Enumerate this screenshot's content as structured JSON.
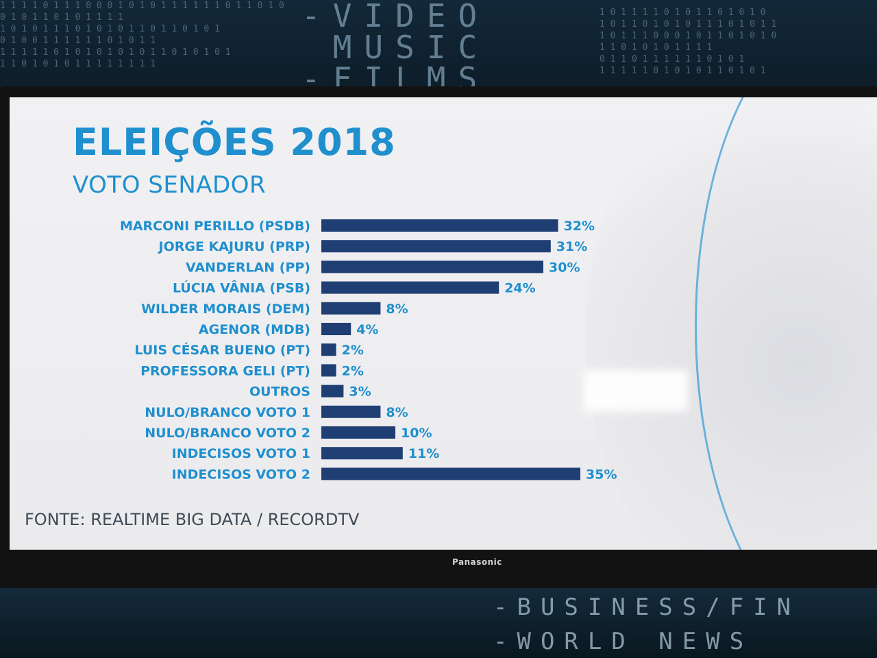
{
  "wall": {
    "words_top": "-VIDEO\n MUSIC\n-FILMS",
    "line_bottom_1": "-BUSINESS/FIN",
    "line_bottom_2": "-WORLD NEWS"
  },
  "tv": {
    "brand": "Panasonic"
  },
  "screen": {
    "title": "ELEIÇÕES 2018",
    "subtitle": "VOTO SENADOR",
    "source": "FONTE: REALTIME BIG DATA / RECORDTV"
  },
  "colors": {
    "bar": "#1f3f74",
    "label": "#1f8fce",
    "title": "#1f8fce",
    "source": "#3f4b56"
  },
  "chart_data": {
    "type": "bar",
    "orientation": "horizontal",
    "title": "ELEIÇÕES 2018",
    "subtitle": "VOTO SENADOR",
    "categories": [
      "MARCONI PERILLO (PSDB)",
      "JORGE KAJURU (PRP)",
      "VANDERLAN (PP)",
      "LÚCIA VÂNIA (PSB)",
      "WILDER MORAIS (DEM)",
      "AGENOR (MDB)",
      "LUIS CÉSAR BUENO (PT)",
      "PROFESSORA GELI (PT)",
      "OUTROS",
      "NULO/BRANCO VOTO 1",
      "NULO/BRANCO VOTO 2",
      "INDECISOS VOTO 1",
      "INDECISOS VOTO 2"
    ],
    "values": [
      32,
      31,
      30,
      24,
      8,
      4,
      2,
      2,
      3,
      8,
      10,
      11,
      35
    ],
    "value_labels": [
      "32%",
      "31%",
      "30%",
      "24%",
      "8%",
      "4%",
      "2%",
      "2%",
      "3%",
      "8%",
      "10%",
      "11%",
      "35%"
    ],
    "unit": "%",
    "xlim": [
      0,
      35
    ],
    "grid": false,
    "legend": "none"
  }
}
